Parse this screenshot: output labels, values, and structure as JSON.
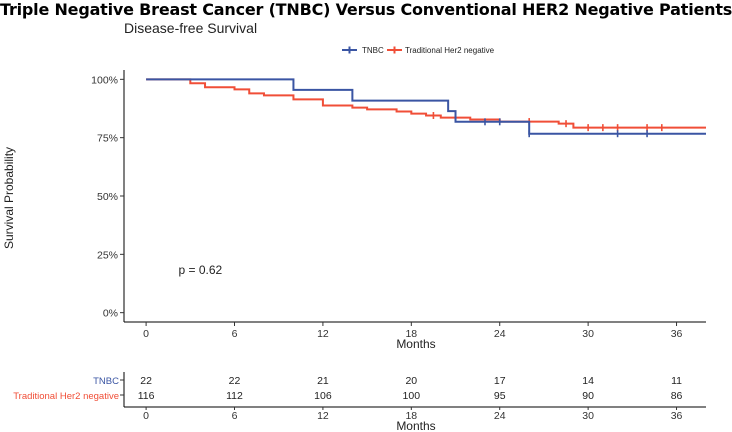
{
  "page_title": "Triple Negative Breast Cancer (TNBC) Versus Conventional HER2 Negative Patients",
  "chart_data": {
    "type": "line",
    "subtitle": "Disease-free Survival",
    "xlabel": "Months",
    "ylabel": "Survival Probability",
    "xlim": [
      -1.5,
      38
    ],
    "ylim": [
      -0.04,
      1.04
    ],
    "x_ticks": [
      0,
      6,
      12,
      18,
      24,
      30,
      36
    ],
    "x_tick_labels": [
      "0",
      "6",
      "12",
      "18",
      "24",
      "30",
      "36"
    ],
    "y_ticks": [
      0,
      0.25,
      0.5,
      0.75,
      1.0
    ],
    "y_tick_labels": [
      "0%",
      "25%",
      "50%",
      "75%",
      "100%"
    ],
    "grid": false,
    "legend_position": "top",
    "annotation": "p = 0.62",
    "series": [
      {
        "name": "TNBC",
        "color": "#3a55a3",
        "steps": [
          [
            0,
            1.0
          ],
          [
            10,
            0.955
          ],
          [
            14,
            0.909
          ],
          [
            20.5,
            0.864
          ],
          [
            21,
            0.818
          ],
          [
            26,
            0.767
          ]
        ],
        "end_x": 38,
        "censors": [
          [
            23,
            0.818
          ],
          [
            24,
            0.818
          ],
          [
            26,
            0.767
          ],
          [
            32,
            0.767
          ],
          [
            34,
            0.767
          ]
        ]
      },
      {
        "name": "Traditional Her2 negative",
        "color": "#f04e37",
        "steps": [
          [
            0,
            1.0
          ],
          [
            3,
            0.983
          ],
          [
            4,
            0.966
          ],
          [
            6,
            0.957
          ],
          [
            7,
            0.94
          ],
          [
            8,
            0.931
          ],
          [
            10,
            0.914
          ],
          [
            12,
            0.888
          ],
          [
            14,
            0.879
          ],
          [
            15,
            0.871
          ],
          [
            17,
            0.862
          ],
          [
            18,
            0.853
          ],
          [
            19,
            0.845
          ],
          [
            20,
            0.836
          ],
          [
            22,
            0.828
          ],
          [
            24,
            0.819
          ],
          [
            28,
            0.81
          ],
          [
            29,
            0.793
          ]
        ],
        "end_x": 38,
        "censors": [
          [
            19.5,
            0.845
          ],
          [
            21,
            0.836
          ],
          [
            26,
            0.819
          ],
          [
            28.5,
            0.81
          ],
          [
            30,
            0.793
          ],
          [
            31,
            0.793
          ],
          [
            32,
            0.793
          ],
          [
            34,
            0.793
          ],
          [
            35,
            0.793
          ]
        ]
      }
    ],
    "risk_table": {
      "x": [
        0,
        6,
        12,
        18,
        24,
        30,
        36
      ],
      "xlabel": "Months",
      "rows": [
        {
          "name": "TNBC",
          "color": "#3a55a3",
          "values": [
            "22",
            "22",
            "21",
            "20",
            "17",
            "14",
            "11"
          ]
        },
        {
          "name": "Traditional Her2 negative",
          "color": "#f04e37",
          "values": [
            "116",
            "112",
            "106",
            "100",
            "95",
            "90",
            "86"
          ]
        }
      ]
    }
  }
}
